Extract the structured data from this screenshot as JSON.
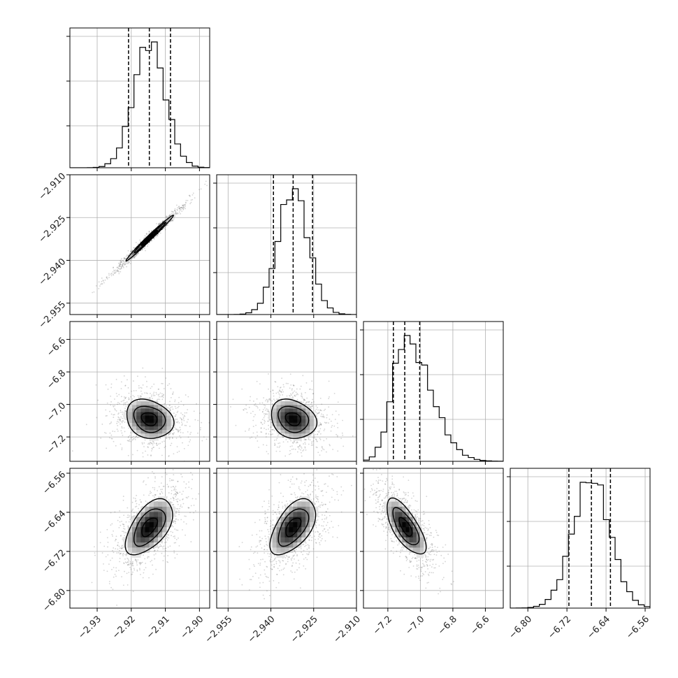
{
  "chart_data": {
    "type": "corner",
    "title": "",
    "grid": true,
    "num_parameters": 4,
    "parameters": [
      {
        "label": "",
        "range": [
          -2.938,
          -2.897
        ],
        "ticks": [
          "−2.93",
          "−2.92",
          "−2.91",
          "−2.90"
        ],
        "tick_values": [
          -2.93,
          -2.92,
          -2.91,
          -2.9
        ],
        "quantiles": [
          -2.9208,
          -2.9147,
          -2.9085
        ],
        "mean": -2.9147,
        "sd": 0.0046
      },
      {
        "label": "",
        "range": [
          -2.959,
          -2.91
        ],
        "ticks": [
          "−2.955",
          "−2.940",
          "−2.925",
          "−2.910"
        ],
        "tick_values": [
          -2.955,
          -2.94,
          -2.925,
          -2.91
        ],
        "quantiles": [
          -2.9391,
          -2.9322,
          -2.9254
        ],
        "mean": -2.9322,
        "sd": 0.0053
      },
      {
        "label": "",
        "range": [
          -7.35,
          -6.49
        ],
        "ticks": [
          "−7.2",
          "−7.0",
          "−6.8",
          "−6.6"
        ],
        "tick_values": [
          -7.2,
          -7.0,
          -6.8,
          -6.6
        ],
        "quantiles": [
          -7.166,
          -7.096,
          -7.004
        ],
        "mean": -7.09,
        "sd": 0.08
      },
      {
        "label": "",
        "range": [
          -6.836,
          -6.55
        ],
        "ticks": [
          "−6.80",
          "−6.72",
          "−6.64",
          "−6.56"
        ],
        "tick_values": [
          -6.8,
          -6.72,
          -6.64,
          -6.56
        ],
        "quantiles": [
          -6.716,
          -6.67,
          -6.631
        ],
        "mean": -6.67,
        "sd": 0.038
      }
    ],
    "histogram_bins": 24,
    "correlations": [
      {
        "row": 1,
        "col": 0,
        "rho": 0.99
      },
      {
        "row": 2,
        "col": 0,
        "rho": -0.2
      },
      {
        "row": 2,
        "col": 1,
        "rho": -0.2
      },
      {
        "row": 3,
        "col": 0,
        "rho": 0.55
      },
      {
        "row": 3,
        "col": 1,
        "rho": 0.55
      },
      {
        "row": 3,
        "col": 2,
        "rho": -0.7
      }
    ],
    "contour_levels_sigma": [
      0.5,
      1.0,
      1.5
    ],
    "scatter_points_per_panel": 900
  },
  "colors": {
    "scatter": "#555555",
    "contour": "#000000",
    "histogram": "#000000",
    "grid": "#b0b0b0",
    "frame": "#000000"
  }
}
